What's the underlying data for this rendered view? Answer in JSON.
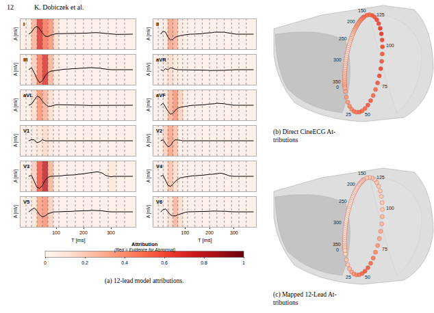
{
  "header": {
    "page": "12",
    "authors": "K. Dobiczek et al."
  },
  "chart_data": [
    {
      "type": "line",
      "caption": "(a) 12-lead model attributions.",
      "x_label": "T [ms]",
      "y_label": "A [mV]",
      "color": "#000000",
      "tick_labels": "x",
      "x": [
        0,
        10,
        20,
        30,
        40,
        50,
        60,
        70,
        80,
        90,
        100,
        110,
        120,
        130,
        140,
        150,
        160,
        170,
        180,
        190,
        200,
        210,
        220,
        230,
        240,
        250,
        260,
        270,
        280,
        290,
        300,
        310,
        320,
        330,
        340,
        350,
        360,
        370,
        380
      ],
      "xlim": [
        -30,
        390
      ],
      "xticks": [
        100,
        200,
        300
      ],
      "ylim": [
        -1.5,
        1.5
      ],
      "segments": [
        -30,
        -10,
        10,
        30,
        50,
        70,
        90,
        110,
        140,
        170,
        200,
        230,
        260,
        290,
        320,
        350,
        390
      ],
      "series": [
        {
          "name": "I",
          "values": [
            0,
            0.2,
            0.6,
            0.8,
            0.5,
            0.1,
            -0.2,
            -0.25,
            -0.1,
            0,
            0.05,
            0.05,
            0.05,
            0.05,
            0.05,
            0.05,
            0.05,
            0.05,
            0.05,
            0.05,
            0.08,
            0.1,
            0.12,
            0.15,
            0.15,
            0.15,
            0.12,
            0.1,
            0.05,
            0.02,
            0,
            0,
            -0.02,
            -0.02,
            -0.02,
            -0.02,
            0,
            0,
            0
          ],
          "attributions": [
            0.05,
            0.08,
            0.3,
            0.7,
            0.5,
            0.4,
            0.15,
            0.05,
            0.05,
            0.05,
            0.05,
            0.05,
            0.05,
            0.05,
            0.05,
            0.05
          ]
        },
        {
          "name": "II",
          "values": [
            0,
            0.3,
            0.2,
            -0.3,
            -0.6,
            -0.5,
            -0.3,
            -0.2,
            -0.15,
            -0.1,
            -0.05,
            -0.05,
            0,
            0,
            0,
            0.05,
            0.05,
            0.05,
            0.1,
            0.1,
            0.15,
            0.15,
            0.2,
            0.2,
            0.25,
            0.25,
            0.2,
            0.15,
            0.1,
            0.05,
            0,
            0,
            0,
            0,
            -0.02,
            -0.02,
            -0.02,
            0,
            0
          ],
          "attributions": [
            0.05,
            0.05,
            0.1,
            0.35,
            0.3,
            0.1,
            0.05,
            0.05,
            0.05,
            0.05,
            0.05,
            0.05,
            0.05,
            0.05,
            0.05,
            0.05
          ]
        },
        {
          "name": "III",
          "values": [
            0,
            0.2,
            -0.3,
            -0.9,
            -1.3,
            -1.1,
            -0.6,
            -0.3,
            -0.15,
            -0.1,
            -0.05,
            0,
            0,
            0.05,
            0.05,
            0.1,
            0.1,
            0.1,
            0.15,
            0.15,
            0.15,
            0.2,
            0.2,
            0.2,
            0.2,
            0.2,
            0.15,
            0.1,
            0.05,
            0.05,
            0,
            0,
            0,
            0,
            0,
            0,
            0,
            0,
            0
          ],
          "attributions": [
            0.05,
            0.05,
            0.2,
            0.5,
            0.7,
            0.3,
            0.1,
            0.05,
            0.05,
            0.05,
            0.05,
            0.05,
            0.05,
            0.05,
            0.05,
            0.05
          ]
        },
        {
          "name": "aVR",
          "values": [
            0,
            -0.1,
            0.1,
            0,
            0.2,
            0.1,
            0.05,
            0,
            0,
            0,
            0,
            0,
            0,
            0,
            -0.02,
            -0.02,
            -0.02,
            -0.05,
            -0.05,
            -0.05,
            -0.08,
            -0.08,
            -0.1,
            -0.1,
            -0.1,
            -0.08,
            -0.06,
            -0.04,
            -0.02,
            0,
            0,
            0,
            0,
            0,
            0,
            0,
            0,
            0,
            0
          ],
          "attributions": [
            0.05,
            0.05,
            0.1,
            0.15,
            0.1,
            0.05,
            0.05,
            0.05,
            0.05,
            0.05,
            0.05,
            0.05,
            0.05,
            0.05,
            0.05,
            0.05
          ]
        },
        {
          "name": "aVL",
          "values": [
            0,
            0.1,
            0.5,
            0.9,
            0.8,
            0.4,
            0.1,
            -0.1,
            -0.1,
            0,
            0.05,
            0.05,
            0.05,
            0.05,
            0.05,
            0.05,
            0.05,
            0.05,
            0,
            0,
            0,
            0,
            -0.02,
            -0.02,
            -0.05,
            -0.05,
            -0.05,
            -0.02,
            0,
            0,
            0,
            0,
            0,
            0,
            0,
            0,
            0,
            0,
            0
          ],
          "attributions": [
            0.05,
            0.05,
            0.15,
            0.4,
            0.3,
            0.15,
            0.05,
            0.05,
            0.05,
            0.05,
            0.05,
            0.05,
            0.05,
            0.05,
            0.05,
            0.05
          ]
        },
        {
          "name": "aVF",
          "values": [
            0,
            0.2,
            -0.2,
            -0.6,
            -0.9,
            -0.8,
            -0.5,
            -0.3,
            -0.2,
            -0.15,
            -0.1,
            -0.05,
            -0.05,
            0,
            0,
            0,
            0.05,
            0.05,
            0.05,
            0.1,
            0.1,
            0.15,
            0.15,
            0.2,
            0.2,
            0.2,
            0.15,
            0.1,
            0.05,
            0.02,
            0,
            0,
            0,
            0,
            0,
            0,
            0,
            0,
            0
          ],
          "attributions": [
            0.05,
            0.05,
            0.1,
            0.3,
            0.4,
            0.2,
            0.08,
            0.05,
            0.05,
            0.05,
            0.05,
            0.05,
            0.05,
            0.05,
            0.05,
            0.05
          ]
        },
        {
          "name": "V1",
          "values": [
            0,
            0.1,
            0.1,
            -0.2,
            -0.1,
            0.1,
            0,
            0,
            0,
            0,
            0,
            0,
            0,
            0,
            0,
            0,
            0,
            0,
            0,
            0,
            0,
            0.02,
            0.02,
            0.02,
            0.02,
            0.02,
            0,
            0,
            0,
            0,
            0,
            0,
            0,
            0,
            0,
            0,
            0,
            0,
            0
          ],
          "attributions": [
            0.05,
            0.05,
            0.08,
            0.1,
            0.15,
            0.1,
            0.05,
            0.05,
            0.05,
            0.05,
            0.05,
            0.05,
            0.05,
            0.05,
            0.05,
            0.05
          ]
        },
        {
          "name": "V2",
          "values": [
            0,
            0.1,
            -0.3,
            -0.6,
            -0.5,
            -0.1,
            0.1,
            0.1,
            0.05,
            0,
            0,
            0,
            0,
            0,
            0,
            0,
            0,
            0,
            0,
            0,
            0,
            0,
            0.02,
            0.02,
            0.02,
            0,
            0,
            0,
            0,
            0,
            0,
            0,
            0,
            0,
            0,
            0,
            0,
            0,
            0
          ],
          "attributions": [
            0.05,
            0.05,
            0.2,
            0.35,
            0.25,
            0.05,
            0.05,
            0.05,
            0.05,
            0.05,
            0.05,
            0.05,
            0.05,
            0.05,
            0.05,
            0.05
          ]
        },
        {
          "name": "V3",
          "values": [
            0,
            0.1,
            -0.5,
            -1.1,
            -1.2,
            -0.9,
            -0.4,
            -0.1,
            0,
            0,
            0.05,
            0.05,
            0.05,
            0.1,
            0.1,
            0.1,
            0.15,
            0.15,
            0.2,
            0.2,
            0.25,
            0.3,
            0.35,
            0.4,
            0.45,
            0.45,
            0.4,
            0.3,
            0.1,
            0,
            -0.05,
            0,
            0,
            0,
            0,
            0,
            0,
            0,
            0
          ],
          "attributions": [
            0.05,
            0.05,
            0.2,
            0.6,
            0.8,
            0.3,
            0.08,
            0.05,
            0.05,
            0.05,
            0.05,
            0.05,
            0.05,
            0.1,
            0.05,
            0.05
          ]
        },
        {
          "name": "V4",
          "values": [
            0,
            0.1,
            -0.4,
            -0.9,
            -1.0,
            -0.8,
            -0.5,
            -0.3,
            -0.15,
            -0.1,
            -0.05,
            0,
            0,
            0.05,
            0.05,
            0.1,
            0.1,
            0.1,
            0.15,
            0.15,
            0.2,
            0.2,
            0.25,
            0.3,
            0.3,
            0.3,
            0.25,
            0.15,
            0.05,
            0,
            0,
            0,
            0,
            0,
            0,
            0,
            0,
            0,
            0
          ],
          "attributions": [
            0.05,
            0.05,
            0.1,
            0.25,
            0.15,
            0.05,
            0.05,
            0.05,
            0.05,
            0.05,
            0.05,
            0.05,
            0.05,
            0.05,
            0.05,
            0.05
          ]
        },
        {
          "name": "V5",
          "values": [
            0,
            0.2,
            0.4,
            0.1,
            -0.3,
            -0.5,
            -0.4,
            -0.2,
            -0.1,
            0,
            0,
            0,
            0.02,
            0.05,
            0.05,
            0.05,
            0.05,
            0.08,
            0.08,
            0.1,
            0.1,
            0.12,
            0.12,
            0.15,
            0.15,
            0.15,
            0.12,
            0.1,
            0.05,
            0,
            0,
            0,
            0,
            0,
            0,
            0,
            0,
            0,
            0
          ],
          "attributions": [
            0.05,
            0.05,
            0.1,
            0.35,
            0.4,
            0.2,
            0.05,
            0.05,
            0.05,
            0.05,
            0.05,
            0.05,
            0.05,
            0.05,
            0.05,
            0.05
          ]
        },
        {
          "name": "V6",
          "values": [
            0,
            0.2,
            0.3,
            0,
            -0.3,
            -0.4,
            -0.4,
            -0.3,
            -0.2,
            -0.1,
            -0.05,
            0,
            0,
            0,
            0,
            0.02,
            0.02,
            0.05,
            0.05,
            0.05,
            0.05,
            0.08,
            0.08,
            0.1,
            0.1,
            0.1,
            0.08,
            0.05,
            0.02,
            0,
            0,
            0,
            0,
            0,
            0,
            0,
            0,
            0,
            0
          ],
          "attributions": [
            0.05,
            0.05,
            0.05,
            0.15,
            0.3,
            0.15,
            0.05,
            0.05,
            0.05,
            0.05,
            0.05,
            0.05,
            0.05,
            0.05,
            0.05,
            0.05
          ]
        }
      ],
      "colorbar": {
        "title": "Attribution",
        "subtitle": "(Red = Evidence for Abnormal)",
        "range": [
          0,
          1
        ],
        "ticks": [
          0,
          0.2,
          0.4,
          0.6,
          0.8,
          1
        ]
      }
    },
    {
      "type": "scatter",
      "caption": [
        "(b) Direct CineECG At-",
        "tributions"
      ],
      "positions": [
        0,
        5,
        10,
        15,
        20,
        25,
        30,
        35,
        40,
        45,
        50,
        55,
        60,
        65,
        70,
        75,
        80,
        85,
        90,
        95,
        100,
        105,
        110,
        115,
        120,
        125,
        130,
        135,
        140,
        145,
        150,
        155,
        160,
        165,
        170,
        175,
        180,
        185,
        190,
        195,
        200,
        205,
        210,
        215,
        220,
        225,
        230,
        235,
        240,
        245,
        250,
        255,
        260,
        265,
        270,
        275,
        280,
        285,
        290,
        295,
        300,
        305,
        310,
        315,
        320,
        325,
        330,
        335,
        340,
        345,
        350,
        355,
        360,
        365,
        370
      ],
      "attributions": [
        0.3,
        0.3,
        0.35,
        0.35,
        0.4,
        0.4,
        0.45,
        0.45,
        0.5,
        0.5,
        0.5,
        0.55,
        0.55,
        0.5,
        0.5,
        0.55,
        0.6,
        0.6,
        0.55,
        0.55,
        0.6,
        0.6,
        0.65,
        0.65,
        0.6,
        0.6,
        0.55,
        0.55,
        0.5,
        0.5,
        0.45,
        0.45,
        0.4,
        0.4,
        0.35,
        0.35,
        0.35,
        0.3,
        0.3,
        0.3,
        0.3,
        0.3,
        0.25,
        0.25,
        0.2,
        0.2,
        0.15,
        0.15,
        0.15,
        0.15,
        0.12,
        0.12,
        0.12,
        0.1,
        0.1,
        0.1,
        0.1,
        0.1,
        0.12,
        0.12,
        0.12,
        0.15,
        0.15,
        0.15,
        0.15,
        0.18,
        0.18,
        0.2,
        0.2,
        0.2,
        0.22,
        0.22,
        0.25,
        0.25,
        0.28
      ],
      "position_labels": [
        0,
        25,
        50,
        75,
        100,
        125,
        150,
        200,
        250,
        300,
        350
      ]
    },
    {
      "type": "scatter",
      "caption": [
        "(c) Mapped 12-Lead At-",
        "tributions"
      ],
      "positions": [
        0,
        5,
        10,
        15,
        20,
        25,
        30,
        35,
        40,
        45,
        50,
        55,
        60,
        65,
        70,
        75,
        80,
        85,
        90,
        95,
        100,
        105,
        110,
        115,
        120,
        125,
        130,
        135,
        140,
        145,
        150,
        155,
        160,
        165,
        170,
        175,
        180,
        185,
        190,
        195,
        200,
        205,
        210,
        215,
        220,
        225,
        230,
        235,
        240,
        245,
        250,
        255,
        260,
        265,
        270,
        275,
        280,
        285,
        290,
        295,
        300,
        305,
        310,
        315,
        320,
        325,
        330,
        335,
        340,
        345,
        350,
        355,
        360,
        365,
        370
      ],
      "attributions": [
        0.15,
        0.15,
        0.2,
        0.2,
        0.25,
        0.3,
        0.35,
        0.4,
        0.45,
        0.5,
        0.55,
        0.55,
        0.5,
        0.45,
        0.4,
        0.35,
        0.3,
        0.3,
        0.25,
        0.25,
        0.2,
        0.2,
        0.2,
        0.2,
        0.2,
        0.2,
        0.2,
        0.2,
        0.18,
        0.18,
        0.15,
        0.15,
        0.12,
        0.12,
        0.1,
        0.1,
        0.1,
        0.08,
        0.08,
        0.08,
        0.08,
        0.08,
        0.06,
        0.06,
        0.06,
        0.06,
        0.05,
        0.05,
        0.05,
        0.05,
        0.05,
        0.05,
        0.05,
        0.05,
        0.05,
        0.05,
        0.05,
        0.05,
        0.05,
        0.05,
        0.05,
        0.05,
        0.05,
        0.06,
        0.06,
        0.06,
        0.08,
        0.08,
        0.1,
        0.1,
        0.1,
        0.12,
        0.12,
        0.12,
        0.15
      ],
      "position_labels": [
        0,
        25,
        50,
        75,
        100,
        125,
        150,
        200,
        250,
        300,
        350
      ]
    }
  ]
}
